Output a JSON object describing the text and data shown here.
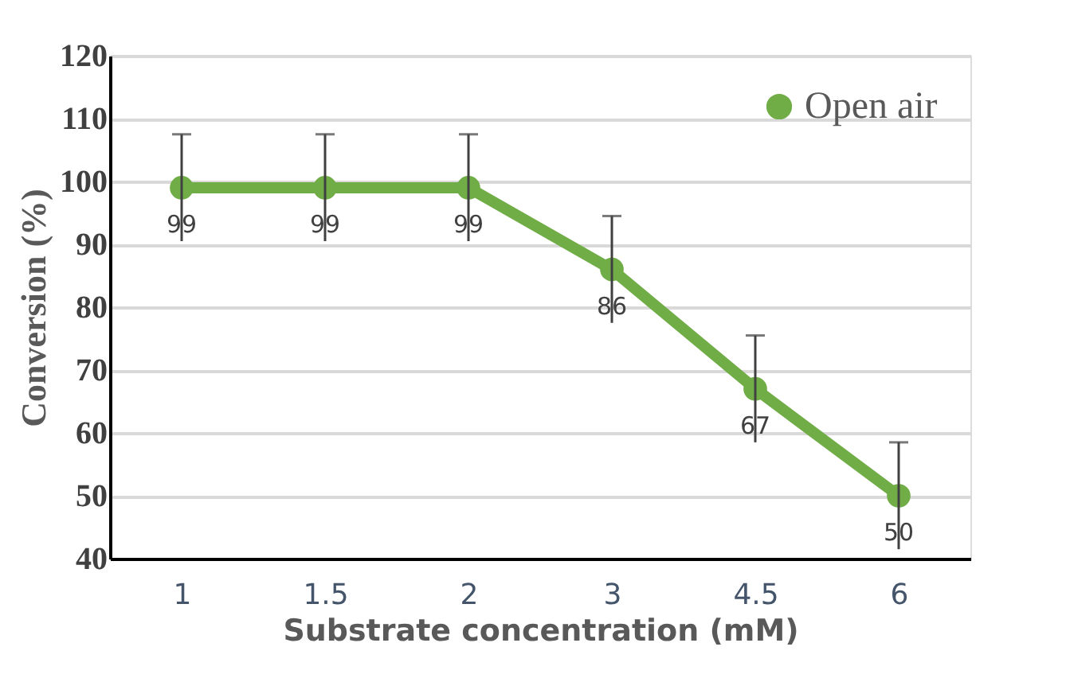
{
  "chart_data": {
    "type": "line",
    "xlabel": "Substrate concentration (mM)",
    "ylabel": "Conversion (%)",
    "categories": [
      "1",
      "1.5",
      "2",
      "3",
      "4.5",
      "6"
    ],
    "series": [
      {
        "name": "Open air",
        "color": "#70ad47",
        "values": [
          99,
          99,
          99,
          86,
          67,
          50
        ],
        "errors": [
          8.5,
          8.5,
          8.5,
          8.5,
          8.5,
          8.5
        ]
      }
    ],
    "ylim": [
      40,
      120
    ],
    "yticks": [
      40,
      50,
      60,
      70,
      80,
      90,
      100,
      110,
      120
    ],
    "grid": "y",
    "legend": "top right",
    "marker": "circle",
    "line_style": "solid",
    "data_labels": true
  }
}
